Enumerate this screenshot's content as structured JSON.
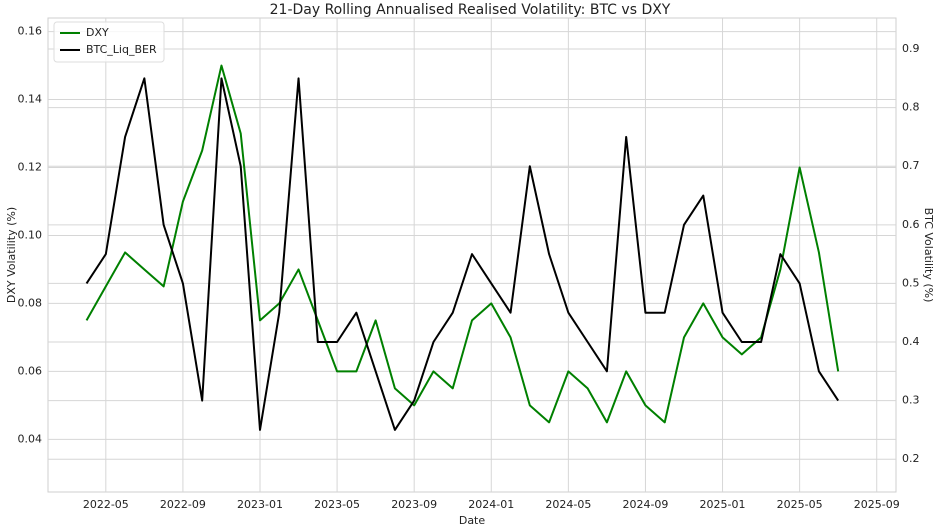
{
  "chart_data": {
    "type": "line",
    "title": "21-Day Rolling Annualised Realised Volatility: BTC vs DXY",
    "x_label": "Date",
    "y_label": "DXY Volatility (%)",
    "y2_label": "BTC Volatility (%)",
    "x": [
      "2022-04",
      "2022-05",
      "2022-06",
      "2022-07",
      "2022-08",
      "2022-09",
      "2022-10",
      "2022-11",
      "2022-12",
      "2023-01",
      "2023-02",
      "2023-03",
      "2023-04",
      "2023-05",
      "2023-06",
      "2023-07",
      "2023-08",
      "2023-09",
      "2023-10",
      "2023-11",
      "2023-12",
      "2024-01",
      "2024-02",
      "2024-03",
      "2024-04",
      "2024-05",
      "2024-06",
      "2024-07",
      "2024-08",
      "2024-09",
      "2024-10",
      "2024-11",
      "2024-12",
      "2025-01",
      "2025-02",
      "2025-03",
      "2025-04",
      "2025-05",
      "2025-06",
      "2025-07"
    ],
    "series": [
      {
        "name": "DXY",
        "color": "#008000",
        "axis": "y",
        "values": [
          0.075,
          0.085,
          0.095,
          0.09,
          0.085,
          0.11,
          0.125,
          0.15,
          0.13,
          0.075,
          0.08,
          0.09,
          0.075,
          0.06,
          0.06,
          0.075,
          0.055,
          0.05,
          0.06,
          0.055,
          0.075,
          0.08,
          0.07,
          0.05,
          0.045,
          0.06,
          0.055,
          0.045,
          0.06,
          0.05,
          0.045,
          0.07,
          0.08,
          0.07,
          0.065,
          0.07,
          0.09,
          0.12,
          0.095,
          0.06
        ]
      },
      {
        "name": "BTC_Liq_BER",
        "color": "#000000",
        "axis": "y2",
        "values": [
          0.5,
          0.55,
          0.75,
          0.85,
          0.6,
          0.5,
          0.3,
          0.85,
          0.7,
          0.25,
          0.45,
          0.85,
          0.4,
          0.4,
          0.45,
          0.35,
          0.25,
          0.3,
          0.4,
          0.45,
          0.55,
          0.5,
          0.45,
          0.7,
          0.55,
          0.45,
          0.4,
          0.35,
          0.75,
          0.45,
          0.45,
          0.6,
          0.65,
          0.45,
          0.4,
          0.4,
          0.55,
          0.5,
          0.35,
          0.3
        ]
      }
    ],
    "xlim": [
      "2022-02",
      "2025-10"
    ],
    "xticks": [
      "2022-05",
      "2022-09",
      "2023-01",
      "2023-05",
      "2023-09",
      "2024-01",
      "2024-05",
      "2024-09",
      "2025-01",
      "2025-05",
      "2025-09"
    ],
    "ylim": [
      0.0245,
      0.164
    ],
    "yticks": [
      0.04,
      0.06,
      0.08,
      {
        "value": 0.1,
        "label": "0.10"
      },
      0.12,
      0.14,
      0.16
    ],
    "y2lim": [
      0.144,
      0.953
    ],
    "y2ticks": [
      0.2,
      0.3,
      0.4,
      0.5,
      0.6,
      0.7,
      0.8,
      0.9
    ],
    "grid": true,
    "legend": "upper-left"
  }
}
